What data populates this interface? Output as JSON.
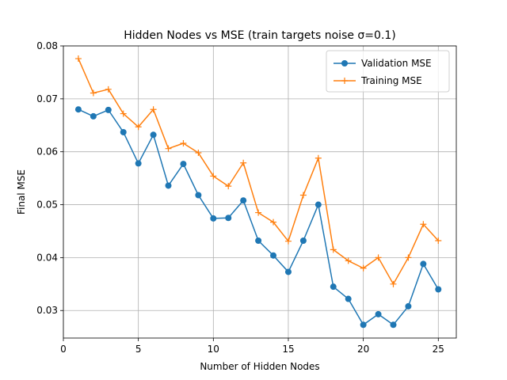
{
  "chart_data": {
    "type": "line",
    "title": "Hidden Nodes vs MSE (train targets noise σ=0.1)",
    "xlabel": "Number of Hidden Nodes",
    "ylabel": "Final MSE",
    "xlim": [
      0,
      26.2
    ],
    "ylim": [
      0.0248,
      0.08
    ],
    "xticks": [
      0,
      5,
      10,
      15,
      20,
      25
    ],
    "yticks": [
      0.03,
      0.04,
      0.05,
      0.06,
      0.07,
      0.08
    ],
    "xtick_labels": [
      "0",
      "5",
      "10",
      "15",
      "20",
      "25"
    ],
    "ytick_labels": [
      "0.03",
      "0.04",
      "0.05",
      "0.06",
      "0.07",
      "0.08"
    ],
    "grid": true,
    "legend_position": "upper-right",
    "x": [
      1,
      2,
      3,
      4,
      5,
      6,
      7,
      8,
      9,
      10,
      11,
      12,
      13,
      14,
      15,
      16,
      17,
      18,
      19,
      20,
      21,
      22,
      23,
      24,
      25
    ],
    "series": [
      {
        "name": "Validation MSE",
        "color": "#1f77b4",
        "marker": "circle",
        "values": [
          0.068,
          0.0667,
          0.0679,
          0.0637,
          0.0578,
          0.0632,
          0.0536,
          0.0577,
          0.0518,
          0.0474,
          0.0475,
          0.0508,
          0.0432,
          0.0404,
          0.0373,
          0.0432,
          0.05,
          0.0345,
          0.0322,
          0.0273,
          0.0293,
          0.0273,
          0.0308,
          0.0388,
          0.034
        ]
      },
      {
        "name": "Training MSE",
        "color": "#ff7f0e",
        "marker": "plus",
        "values": [
          0.0776,
          0.0711,
          0.0718,
          0.0672,
          0.0647,
          0.068,
          0.0606,
          0.0616,
          0.0598,
          0.0554,
          0.0535,
          0.0579,
          0.0485,
          0.0467,
          0.0431,
          0.0518,
          0.0588,
          0.0415,
          0.0394,
          0.038,
          0.04,
          0.035,
          0.04,
          0.0463,
          0.0432
        ]
      }
    ]
  }
}
